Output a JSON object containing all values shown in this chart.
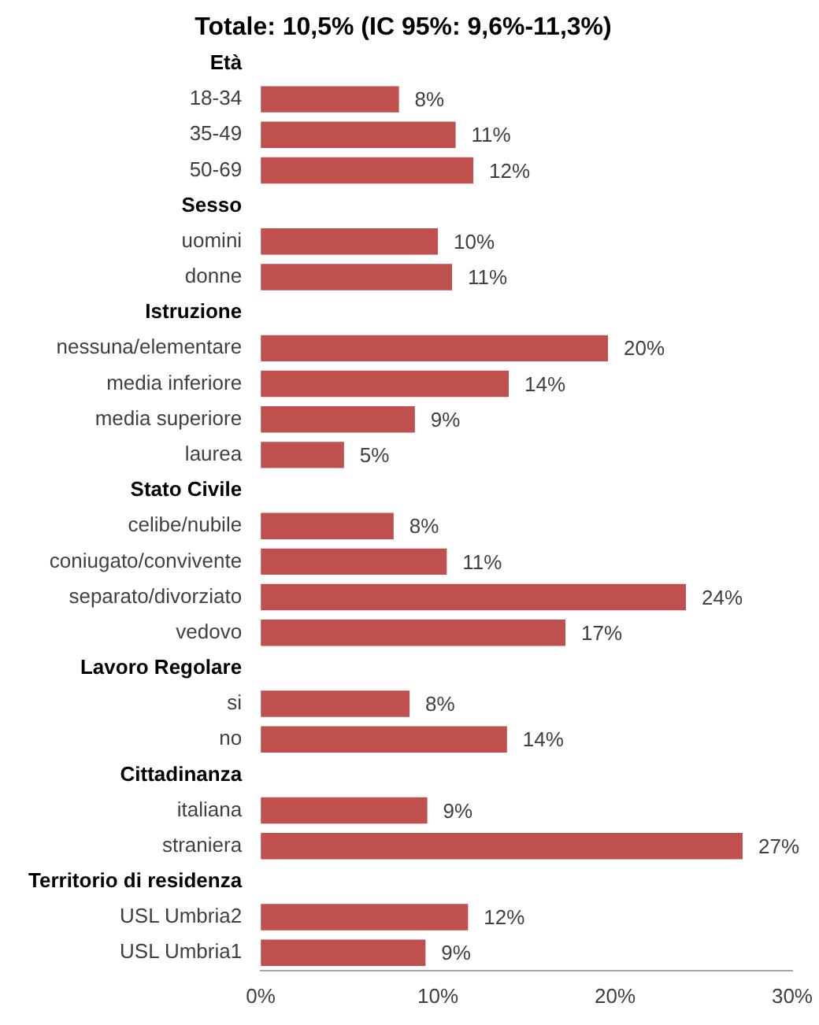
{
  "chart_data": {
    "type": "bar",
    "orientation": "horizontal",
    "title": "Totale: 10,5% (IC 95%: 9,6%-11,3%)",
    "categories": [
      "Età",
      "18-34",
      "35-49",
      "50-69",
      "Sesso",
      "uomini",
      "donne",
      "Istruzione",
      "nessuna/elementare",
      "media inferiore",
      "media superiore",
      "laurea",
      "Stato Civile",
      "celibe/nubile",
      "coniugato/convivente",
      "separato/divorziato",
      "vedovo",
      "Lavoro Regolare",
      "si",
      "no",
      "Cittadinanza",
      "italiana",
      "straniera",
      "Territorio di residenza",
      "USL Umbria2",
      "USL Umbria1"
    ],
    "values": [
      null,
      7.8,
      11.0,
      12.0,
      null,
      10.0,
      10.8,
      null,
      19.6,
      14.0,
      8.7,
      4.7,
      null,
      7.5,
      10.5,
      24.0,
      17.2,
      null,
      8.4,
      13.9,
      null,
      9.4,
      27.2,
      null,
      11.7,
      9.3
    ],
    "value_labels": [
      null,
      "8%",
      "11%",
      "12%",
      null,
      "10%",
      "11%",
      null,
      "20%",
      "14%",
      "9%",
      "5%",
      null,
      "8%",
      "11%",
      "24%",
      "17%",
      null,
      "8%",
      "14%",
      null,
      "9%",
      "27%",
      null,
      "12%",
      "9%"
    ],
    "color": "#c0504d",
    "xlim": [
      0,
      30
    ],
    "xticks": [
      {
        "value": 0,
        "label": "0%"
      },
      {
        "value": 10,
        "label": "10%"
      },
      {
        "value": 20,
        "label": "20%"
      },
      {
        "value": 30,
        "label": "30%"
      }
    ],
    "grid": false,
    "legend": false
  }
}
